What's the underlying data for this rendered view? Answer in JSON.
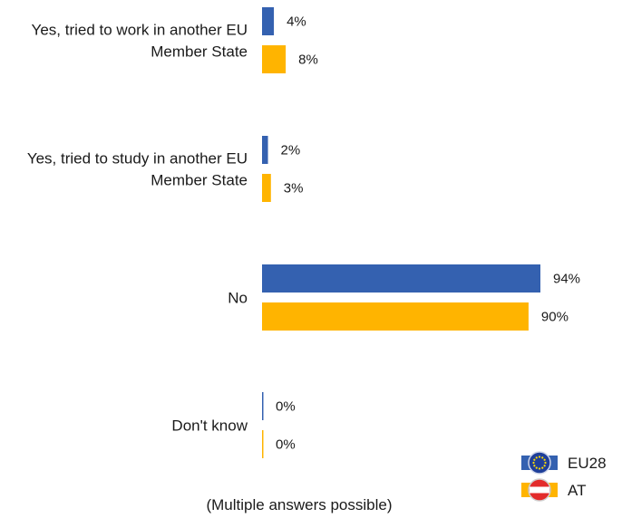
{
  "chart_data": {
    "type": "bar",
    "orientation": "horizontal",
    "categories": [
      [
        "Yes, tried to work in another EU",
        "Member State"
      ],
      [
        "Yes, tried to study in another EU",
        "Member State"
      ],
      [
        "No"
      ],
      [
        "Don't know"
      ]
    ],
    "series": [
      {
        "name": "EU28",
        "values": [
          4,
          2,
          94,
          0
        ],
        "color": "#3461b0",
        "icon": "eu-flag-icon"
      },
      {
        "name": "AT",
        "values": [
          8,
          3,
          90,
          0
        ],
        "color": "#ffb400",
        "icon": "austria-flag-icon"
      }
    ],
    "value_suffix": "%",
    "xlim": [
      0,
      100
    ],
    "grid": false,
    "legend_position": "bottom-right",
    "note": "(Multiple answers possible)"
  }
}
